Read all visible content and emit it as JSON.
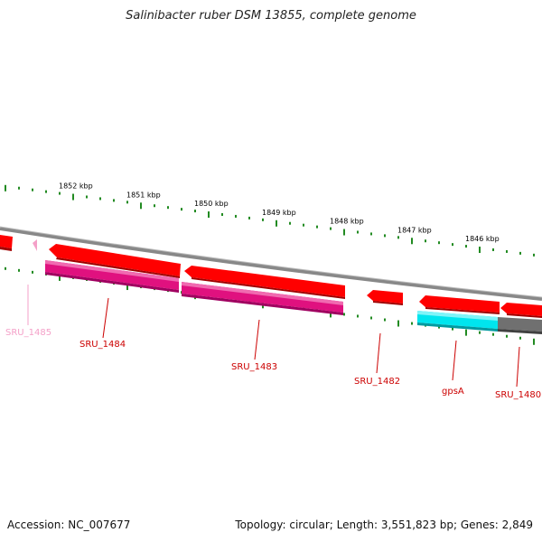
{
  "title": "Salinibacter ruber DSM 13855, complete genome",
  "footer": {
    "accession": "Accession: NC_007677",
    "summary": "Topology: circular; Length: 3,551,823 bp; Genes: 2,849"
  },
  "colors": {
    "forward_gene": "#ff0000",
    "reverse_gene": "#e0117f",
    "rna_gene": "#00e5ee",
    "pseudo_gene": "#808080",
    "backbone": "#888888",
    "tick": "#228b22",
    "label_forward": "#cc0000",
    "label_pseudo": "#f4a0c8"
  },
  "scale": {
    "unit": "kbp",
    "ticks": [
      "1852 kbp",
      "1851 kbp",
      "1850 kbp",
      "1849 kbp",
      "1848 kbp",
      "1847 kbp",
      "1846 kbp"
    ]
  },
  "genes": [
    {
      "name": "SRU_1485",
      "strand": "reverse",
      "type": "pseudo"
    },
    {
      "name": "SRU_1484",
      "strand": "reverse",
      "type": "cds"
    },
    {
      "name": "SRU_1483",
      "strand": "reverse",
      "type": "cds"
    },
    {
      "name": "SRU_1482",
      "strand": "forward",
      "type": "cds"
    },
    {
      "name": "gpsA",
      "strand": "forward",
      "type": "cds"
    },
    {
      "name": "SRU_1480",
      "strand": "forward",
      "type": "cds"
    }
  ]
}
